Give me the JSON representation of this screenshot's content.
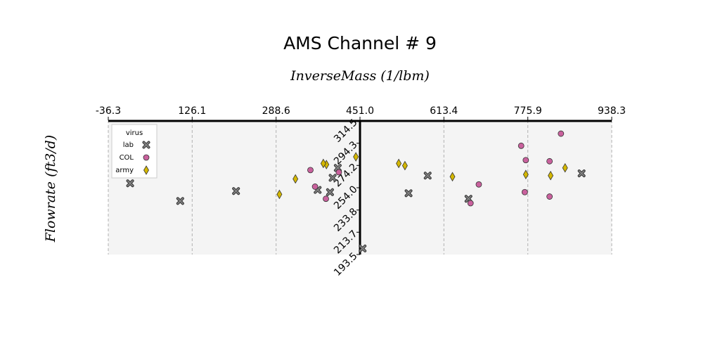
{
  "chart_data": {
    "type": "scatter",
    "title": "AMS Channel # 9",
    "xlabel": "InverseMass (1/lbm)",
    "ylabel": "Flowrate (ft3/d)",
    "xticks": [
      "-36.3",
      "126.1",
      "288.6",
      "451.0",
      "613.4",
      "775.9",
      "938.3"
    ],
    "yticks": [
      "193.5",
      "213.7",
      "233.8",
      "254.0",
      "274.2",
      "294.3",
      "314.5"
    ],
    "xlim": [
      -36.3,
      938.3
    ],
    "ylim": [
      193.5,
      314.5
    ],
    "grid": "vertical dashed",
    "legend": {
      "title": "virus",
      "position": "top-left"
    },
    "colors": {
      "lab": "#808080",
      "COL": "#c9619d",
      "army": "#d4b700",
      "background": "#f4f4f4"
    },
    "series": [
      {
        "name": "lab",
        "marker": "x",
        "points": [
          [
            6,
            258
          ],
          [
            103,
            242
          ],
          [
            211,
            251
          ],
          [
            369,
            252
          ],
          [
            393,
            250
          ],
          [
            398,
            263
          ],
          [
            408,
            272
          ],
          [
            545,
            249
          ],
          [
            582,
            265
          ],
          [
            661,
            244
          ],
          [
            880,
            267
          ],
          [
            456,
            199
          ]
        ]
      },
      {
        "name": "COL",
        "marker": "o",
        "points": [
          [
            840,
            303
          ],
          [
            763,
            292
          ],
          [
            772,
            279
          ],
          [
            818,
            278
          ],
          [
            681,
            257
          ],
          [
            665,
            240
          ],
          [
            770,
            250
          ],
          [
            818,
            246
          ],
          [
            355,
            270
          ],
          [
            364,
            255
          ],
          [
            410,
            268
          ],
          [
            385,
            244
          ]
        ]
      },
      {
        "name": "army",
        "marker": "d",
        "points": [
          [
            443,
            282
          ],
          [
            386,
            275
          ],
          [
            380,
            276
          ],
          [
            326,
            262
          ],
          [
            295,
            248
          ],
          [
            526,
            276
          ],
          [
            538,
            274
          ],
          [
            630,
            264
          ],
          [
            772,
            266
          ],
          [
            820,
            265
          ],
          [
            848,
            272
          ]
        ]
      }
    ]
  }
}
